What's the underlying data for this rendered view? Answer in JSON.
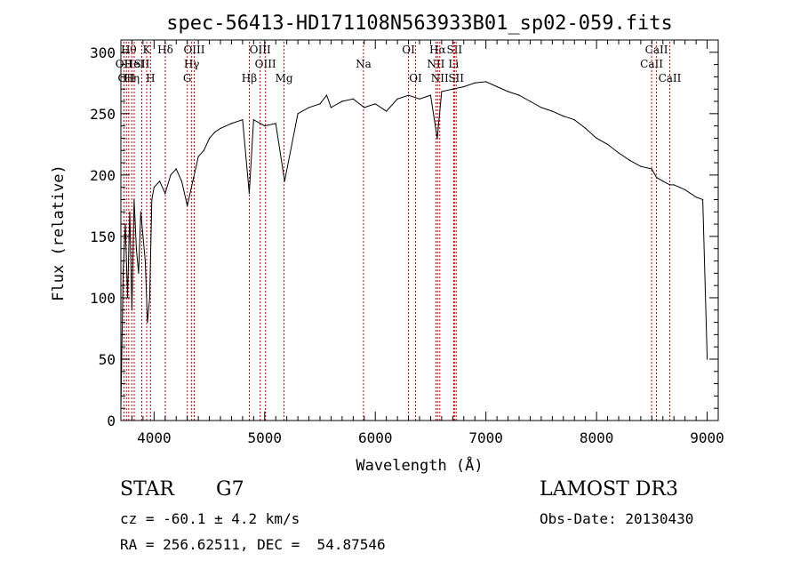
{
  "chart_data": {
    "type": "line",
    "title": "spec-56413-HD171108N563933B01_sp02-059.fits",
    "xlabel": "Wavelength (Å)",
    "ylabel": "Flux (relative)",
    "xlim": [
      3700,
      9100
    ],
    "ylim": [
      0,
      310
    ],
    "xticks": [
      4000,
      5000,
      6000,
      7000,
      8000,
      9000
    ],
    "yticks": [
      0,
      50,
      100,
      150,
      200,
      250,
      300
    ],
    "grid": false,
    "line_color": "#000000",
    "marker_color": "#cc0000",
    "series": [
      {
        "x": [
          3700,
          3720,
          3740,
          3760,
          3780,
          3800,
          3820,
          3840,
          3860,
          3880,
          3900,
          3920,
          3940,
          3960,
          3980,
          4000,
          4050,
          4100,
          4150,
          4200,
          4250,
          4300,
          4350,
          4400,
          4450,
          4500,
          4550,
          4600,
          4700,
          4800,
          4860,
          4900,
          5000,
          5100,
          5180,
          5300,
          5400,
          5500,
          5560,
          5600,
          5700,
          5800,
          5900,
          6000,
          6100,
          6200,
          6300,
          6400,
          6500,
          6560,
          6600,
          6700,
          6800,
          6900,
          7000,
          7100,
          7200,
          7300,
          7400,
          7500,
          7600,
          7700,
          7800,
          7900,
          8000,
          8100,
          8200,
          8300,
          8400,
          8498,
          8542,
          8600,
          8662,
          8700,
          8800,
          8900,
          8960,
          9000
        ],
        "y": [
          10,
          120,
          160,
          100,
          170,
          90,
          180,
          140,
          120,
          170,
          150,
          130,
          80,
          100,
          180,
          190,
          195,
          185,
          200,
          205,
          195,
          175,
          195,
          215,
          220,
          230,
          235,
          238,
          242,
          245,
          185,
          245,
          240,
          242,
          195,
          250,
          255,
          258,
          265,
          255,
          260,
          262,
          255,
          258,
          252,
          262,
          265,
          262,
          265,
          230,
          268,
          270,
          272,
          275,
          276,
          272,
          268,
          265,
          260,
          255,
          252,
          248,
          245,
          238,
          230,
          225,
          218,
          212,
          207,
          205,
          198,
          195,
          192,
          192,
          188,
          182,
          180,
          50
        ]
      }
    ],
    "lines": [
      {
        "wl": 3727,
        "label": "OII",
        "row": 2
      },
      {
        "wl": 3750,
        "label": "OII",
        "row": 3
      },
      {
        "wl": 3771,
        "label": "Hθ",
        "row": 1
      },
      {
        "wl": 3798,
        "label": "Hη",
        "row": 3
      },
      {
        "wl": 3820,
        "label": "HeI",
        "row": 2
      },
      {
        "wl": 3889,
        "label": "SII",
        "row": 2
      },
      {
        "wl": 3933,
        "label": "K",
        "row": 1
      },
      {
        "wl": 3968,
        "label": "H",
        "row": 3
      },
      {
        "wl": 4102,
        "label": "Hδ",
        "row": 1
      },
      {
        "wl": 4300,
        "label": "G",
        "row": 3
      },
      {
        "wl": 4340,
        "label": "Hγ",
        "row": 2
      },
      {
        "wl": 4363,
        "label": "OIII",
        "row": 1
      },
      {
        "wl": 4861,
        "label": "Hβ",
        "row": 3
      },
      {
        "wl": 4959,
        "label": "OIII",
        "row": 1
      },
      {
        "wl": 5007,
        "label": "OIII",
        "row": 2
      },
      {
        "wl": 5175,
        "label": "Mg",
        "row": 3
      },
      {
        "wl": 5893,
        "label": "Na",
        "row": 2
      },
      {
        "wl": 6300,
        "label": "OI",
        "row": 1
      },
      {
        "wl": 6364,
        "label": "OI",
        "row": 3
      },
      {
        "wl": 6548,
        "label": "NII",
        "row": 2
      },
      {
        "wl": 6563,
        "label": "Hα",
        "row": 1
      },
      {
        "wl": 6583,
        "label": "NII",
        "row": 3
      },
      {
        "wl": 6708,
        "label": "Li",
        "row": 2
      },
      {
        "wl": 6716,
        "label": "SII",
        "row": 1
      },
      {
        "wl": 6731,
        "label": "SII",
        "row": 3
      },
      {
        "wl": 8498,
        "label": "CaII",
        "row": 2
      },
      {
        "wl": 8542,
        "label": "CaII",
        "row": 1
      },
      {
        "wl": 8662,
        "label": "CaII",
        "row": 3
      }
    ]
  },
  "info": {
    "class": "STAR",
    "subclass": "G7",
    "survey": "LAMOST DR3",
    "cz": "cz = -60.1 ± 4.2 km/s",
    "obs_date": "Obs-Date: 20130430",
    "radec": "RA = 256.62511, DEC =  54.87546"
  }
}
